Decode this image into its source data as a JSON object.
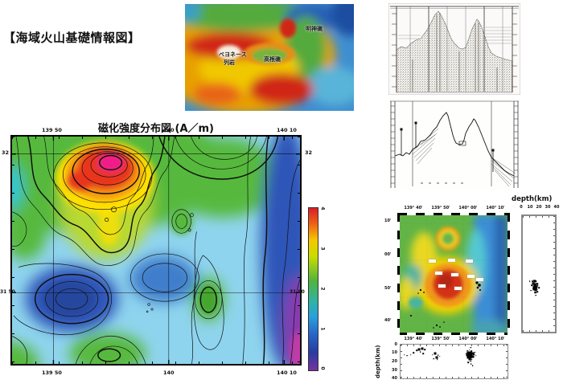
{
  "page": {
    "title": "【海域火山基礎情報図】"
  },
  "relief_map": {
    "labels": {
      "myojinsho": "明神礁",
      "bayonnaise_line1": "ベヨネース",
      "bayonnaise_line2": "列岩",
      "takanesho": "高根礁"
    }
  },
  "magnetic_map": {
    "title": "磁化強度分布図 (A／m)",
    "axis_top": [
      "139 50",
      "140",
      "140 10"
    ],
    "axis_bottom": [
      "139 50",
      "140",
      "140 10"
    ],
    "axis_left": [
      "32",
      "31 50"
    ],
    "axis_right": [
      "32",
      "31 50"
    ],
    "colorbar_ticks": [
      "4",
      "3",
      "2",
      "1",
      "0"
    ]
  },
  "hypocenter": {
    "map_axis_top": [
      "139° 40'",
      "139° 50'",
      "140° 00'",
      "140° 10'"
    ],
    "map_axis_bottom": [
      "139° 40'",
      "139° 50'",
      "140° 00'",
      "140° 10'"
    ],
    "map_axis_left": [
      "10'",
      "00'",
      "50'",
      "40'"
    ],
    "right_panel_title": "depth(km)",
    "right_panel_ticks": [
      "0",
      "10",
      "20",
      "30",
      "40"
    ],
    "bottom_panel_ylabel": "depth(km)",
    "bottom_panel_yticks": [
      "0",
      "10",
      "20",
      "30",
      "40"
    ]
  },
  "chart_data": [
    {
      "type": "heatmap",
      "id": "magnetization-contour-map",
      "title": "磁化強度分布図 (A／m)",
      "xticks": [
        "139 50",
        "140",
        "140 10"
      ],
      "yticks_left": [
        "32",
        "31 50"
      ],
      "colorbar": {
        "ticks": [
          4,
          3,
          2,
          1,
          0
        ],
        "unit": "A/m",
        "colors_top_to_bottom": [
          "#d81e28",
          "#f5c800",
          "#50b43c",
          "#28a0dc",
          "#7832a0"
        ]
      },
      "features": [
        "strong positive magnetization high (~4 A/m, magenta core) northwest of map center",
        "yellow-orange halo trailing south from the high",
        "closed low (dark blue basin) in the southwest quadrant",
        "small green highs east of center and south-southeast",
        "low band along the east edge reaching purple (~0 A/m) at the southeast corner"
      ]
    },
    {
      "type": "scatter",
      "id": "depth-right-panel",
      "target": "dp-right-scatter",
      "xlabel": "depth(km)",
      "xticks": [
        0,
        10,
        20,
        30,
        40
      ],
      "summary": "hypocenter cluster at roughly 10-20 km depth near latitude 31°50'N",
      "points_frac": [
        [
          0.3,
          0.565,
          1
        ],
        [
          0.34,
          0.555,
          1
        ],
        [
          0.38,
          0.56,
          2
        ],
        [
          0.42,
          0.565,
          1
        ],
        [
          0.33,
          0.585,
          2
        ],
        [
          0.37,
          0.59,
          2
        ],
        [
          0.41,
          0.59,
          2
        ],
        [
          0.45,
          0.585,
          1
        ],
        [
          0.35,
          0.61,
          2
        ],
        [
          0.39,
          0.615,
          2
        ],
        [
          0.43,
          0.61,
          2
        ],
        [
          0.47,
          0.6,
          1
        ],
        [
          0.36,
          0.635,
          2
        ],
        [
          0.4,
          0.64,
          2
        ],
        [
          0.44,
          0.635,
          1
        ],
        [
          0.32,
          0.625,
          1
        ],
        [
          0.38,
          0.66,
          1
        ],
        [
          0.42,
          0.66,
          1
        ],
        [
          0.28,
          0.6,
          1
        ],
        [
          0.25,
          0.645,
          1
        ],
        [
          0.46,
          0.655,
          1
        ],
        [
          0.4,
          0.685,
          1
        ],
        [
          0.5,
          0.62,
          1
        ],
        [
          0.22,
          0.565,
          1
        ]
      ]
    },
    {
      "type": "scatter",
      "id": "depth-bottom-panel",
      "target": "dp-bottom-scatter",
      "ylabel": "depth(km)",
      "yticks": [
        0,
        10,
        20,
        30,
        40
      ],
      "xticks": [
        "139° 40'",
        "139° 50'",
        "140° 00'",
        "140° 10'"
      ],
      "summary": "shallow clusters (~5-15 km) near 139°42'-139°48'E and a dense cluster (~8-25 km) near 140°00'E",
      "points_frac": [
        [
          0.095,
          0.3,
          1
        ],
        [
          0.12,
          0.24,
          1
        ],
        [
          0.15,
          0.17,
          1
        ],
        [
          0.175,
          0.14,
          2
        ],
        [
          0.2,
          0.13,
          2
        ],
        [
          0.225,
          0.15,
          1
        ],
        [
          0.185,
          0.22,
          1
        ],
        [
          0.21,
          0.26,
          1
        ],
        [
          0.06,
          0.33,
          1
        ],
        [
          0.035,
          0.3,
          1
        ],
        [
          0.3,
          0.3,
          1
        ],
        [
          0.325,
          0.27,
          2
        ],
        [
          0.35,
          0.31,
          1
        ],
        [
          0.335,
          0.37,
          2
        ],
        [
          0.365,
          0.35,
          1
        ],
        [
          0.31,
          0.42,
          1
        ],
        [
          0.345,
          0.44,
          1
        ],
        [
          0.655,
          0.09,
          1
        ],
        [
          0.625,
          0.18,
          1
        ],
        [
          0.645,
          0.16,
          1
        ],
        [
          0.665,
          0.19,
          1
        ],
        [
          0.635,
          0.24,
          2
        ],
        [
          0.655,
          0.23,
          2
        ],
        [
          0.675,
          0.26,
          2
        ],
        [
          0.625,
          0.3,
          2
        ],
        [
          0.645,
          0.32,
          2
        ],
        [
          0.665,
          0.31,
          2
        ],
        [
          0.685,
          0.29,
          1
        ],
        [
          0.635,
          0.37,
          2
        ],
        [
          0.655,
          0.385,
          2
        ],
        [
          0.675,
          0.365,
          2
        ],
        [
          0.645,
          0.43,
          2
        ],
        [
          0.665,
          0.445,
          1
        ],
        [
          0.655,
          0.49,
          1
        ],
        [
          0.635,
          0.53,
          1
        ],
        [
          0.695,
          0.235,
          1
        ],
        [
          0.705,
          0.33,
          1
        ],
        [
          0.615,
          0.26,
          1
        ],
        [
          0.66,
          0.575,
          1
        ],
        [
          0.675,
          0.62,
          1
        ]
      ]
    }
  ]
}
